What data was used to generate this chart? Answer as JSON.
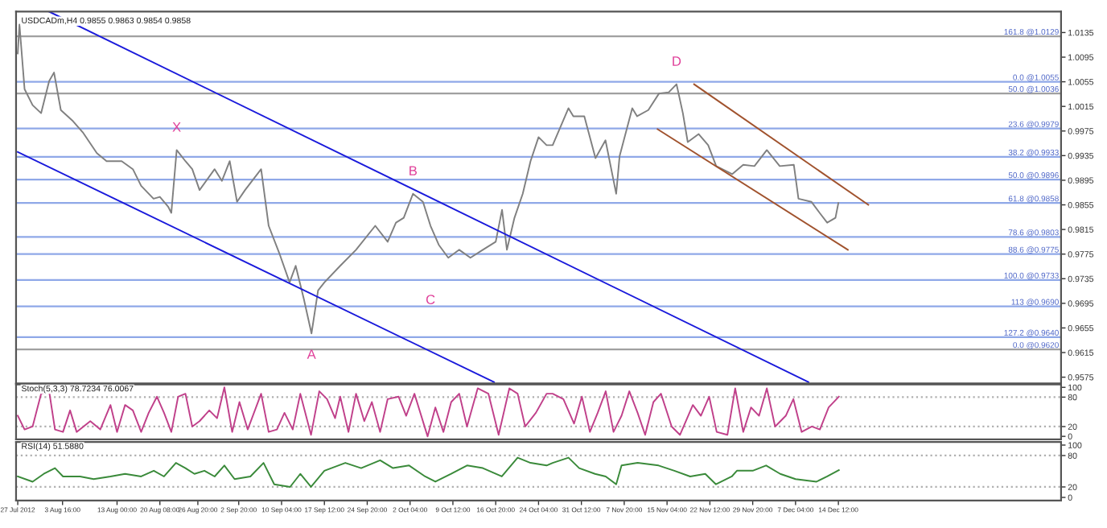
{
  "chart_data": [
    {
      "type": "line",
      "annotations": [
        "USDCADm,H4 0.9855 0.9863 0.9854 0.9858",
        {
          "text": "X",
          "x": "2012-08-23T05:00",
          "y": 0.9944
        },
        {
          "text": "A",
          "x": "2012-09-15T07:00",
          "y": 0.9646
        },
        {
          "text": "B",
          "x": "2012-10-02T16:00",
          "y": 0.9873
        },
        {
          "text": "C",
          "x": "2012-10-05T16:00",
          "y": 0.9735
        },
        {
          "text": "D",
          "x": "2012-11-16T19:00",
          "y": 1.0051
        }
      ],
      "series": [
        {
          "color": "#808080",
          "x": [
            "2012-07-27T00:00",
            "2012-07-27T07:00",
            "2012-07-28T04:00",
            "2012-07-29T13:00",
            "2012-07-31T00:00",
            "2012-08-01T09:00",
            "2012-08-02T05:00",
            "2012-08-03T09:00",
            "2012-08-05T11:00",
            "2012-08-07T03:00",
            "2012-08-09T13:00",
            "2012-08-11T05:00",
            "2012-08-13T19:00",
            "2012-08-15T17:00",
            "2012-08-17T03:00",
            "2012-08-19T06:00",
            "2012-08-20T08:00",
            "2012-08-21T18:00",
            "2012-08-22T07:00",
            "2012-08-23T05:00",
            "2012-08-24T17:00",
            "2012-08-25T21:00",
            "2012-08-27T03:00",
            "2012-08-29T17:00",
            "2012-08-30T23:00",
            "2012-09-01T07:00",
            "2012-09-02T13:00",
            "2012-09-03T22:00",
            "2012-09-06T16:00",
            "2012-09-07T23:00",
            "2012-09-09T21:00",
            "2012-09-11T13:00",
            "2012-09-12T14:00",
            "2012-09-13T23:00",
            "2012-09-15T07:00",
            "2012-09-16T10:00",
            "2012-09-17T12:00",
            "2012-09-20T05:00",
            "2012-09-22T22:00",
            "2012-09-26T05:00",
            "2012-09-28T08:00",
            "2012-09-29T18:00",
            "2012-10-01T02:00",
            "2012-10-02T16:00",
            "2012-10-04T09:00",
            "2012-10-05T16:00",
            "2012-10-07T02:00",
            "2012-10-08T17:00",
            "2012-10-10T14:00",
            "2012-10-12T12:00",
            "2012-10-14T15:00",
            "2012-10-16T20:00",
            "2012-10-17T22:00",
            "2012-10-18T18:00",
            "2012-10-20T01:00",
            "2012-10-21T11:00",
            "2012-10-22T19:00",
            "2012-10-24T04:00",
            "2012-10-25T13:00",
            "2012-10-26T14:00",
            "2012-10-29T07:00",
            "2012-10-30T03:00",
            "2012-11-01T00:00",
            "2012-11-02T22:00",
            "2012-11-04T15:00",
            "2012-11-06T11:00",
            "2012-11-07T01:00",
            "2012-11-09T05:00",
            "2012-11-10T01:00",
            "2012-11-11T23:00",
            "2012-11-13T19:00",
            "2012-11-15T11:00",
            "2012-11-16T19:00",
            "2012-11-17T21:00",
            "2012-11-18T17:00",
            "2012-11-20T14:00",
            "2012-11-22T05:00",
            "2012-11-23T14:00",
            "2012-11-26T08:00",
            "2012-11-28T05:00",
            "2012-11-30T03:00",
            "2012-12-02T06:00",
            "2012-12-04T11:00",
            "2012-12-06T21:00",
            "2012-12-07T16:00",
            "2012-12-09T21:00",
            "2012-12-11T07:00",
            "2012-12-12T14:00",
            "2012-12-14T00:00",
            "2012-12-14T12:00"
          ],
          "values": [
            1.0101,
            1.0148,
            1.0043,
            1.0017,
            1.0004,
            1.0056,
            1.007,
            1.0009,
            0.9991,
            0.9973,
            0.9939,
            0.9926,
            0.9926,
            0.9913,
            0.9886,
            0.9865,
            0.9868,
            0.9852,
            0.9842,
            0.9944,
            0.9926,
            0.9913,
            0.9879,
            0.9913,
            0.9894,
            0.9926,
            0.986,
            0.9879,
            0.9913,
            0.9821,
            0.9774,
            0.9729,
            0.9756,
            0.9703,
            0.9646,
            0.9716,
            0.9729,
            0.9756,
            0.9782,
            0.9821,
            0.9795,
            0.9826,
            0.9834,
            0.9873,
            0.986,
            0.9821,
            0.979,
            0.9769,
            0.9782,
            0.9769,
            0.9782,
            0.9795,
            0.9847,
            0.9782,
            0.9834,
            0.9873,
            0.9926,
            0.9965,
            0.9952,
            0.9952,
            1.0012,
            0.9999,
            0.9999,
            0.9931,
            0.996,
            0.9873,
            0.9934,
            1.0012,
            0.9999,
            1.0009,
            1.0036,
            1.0038,
            1.0051,
            1.0004,
            0.9957,
            0.997,
            0.9952,
            0.9918,
            0.9905,
            0.992,
            0.9918,
            0.9944,
            0.9918,
            0.992,
            0.9865,
            0.986,
            0.9842,
            0.9826,
            0.9834,
            0.9858
          ]
        },
        {
          "color": "#1a1adb",
          "x": [
            "2012-08-01T09:00",
            "2012-12-09T09:00"
          ],
          "values": [
            1.0169,
            0.9567
          ]
        },
        {
          "color": "#1a1adb",
          "x": [
            "2012-07-27T00:00",
            "2012-10-16T13:00"
          ],
          "values": [
            0.9941,
            0.9567
          ]
        },
        {
          "color": "#a0522d",
          "x": [
            "2012-11-19T19:00",
            "2012-12-19T15:00"
          ],
          "values": [
            1.0051,
            0.9855
          ]
        },
        {
          "color": "#a0522d",
          "x": [
            "2012-11-13T13:00",
            "2012-12-16T03:00"
          ],
          "values": [
            0.9978,
            0.9782
          ]
        }
      ],
      "ref_lines": [
        {
          "axis": "y",
          "value": 1.0129,
          "label": "161.8 @1.0129",
          "color": "#a0a0a0"
        },
        {
          "axis": "y",
          "value": 1.0055,
          "label": "0.0 @1.0055",
          "color": "#8fa8e8"
        },
        {
          "axis": "y",
          "value": 1.0036,
          "label": "50.0 @1.0036",
          "color": "#a0a0a0"
        },
        {
          "axis": "y",
          "value": 0.9979,
          "label": "23.6 @0.9979",
          "color": "#8fa8e8"
        },
        {
          "axis": "y",
          "value": 0.9933,
          "label": "38.2 @0.9933",
          "color": "#8fa8e8"
        },
        {
          "axis": "y",
          "value": 0.9896,
          "label": "50.0 @0.9896",
          "color": "#8fa8e8"
        },
        {
          "axis": "y",
          "value": 0.9858,
          "label": "61.8 @0.9858",
          "color": "#8fa8e8"
        },
        {
          "axis": "y",
          "value": 0.9803,
          "label": "78.6 @0.9803",
          "color": "#8fa8e8"
        },
        {
          "axis": "y",
          "value": 0.9775,
          "label": "88.6 @0.9775",
          "color": "#8fa8e8"
        },
        {
          "axis": "y",
          "value": 0.9733,
          "label": "100.0 @0.9733",
          "color": "#8fa8e8"
        },
        {
          "axis": "y",
          "value": 0.969,
          "label": "113 @0.9690",
          "color": "#8fa8e8"
        },
        {
          "axis": "y",
          "value": 0.964,
          "label": "127.2 @0.9640",
          "color": "#8fa8e8"
        },
        {
          "axis": "y",
          "value": 0.962,
          "label": "0.0 @0.9620",
          "color": "#a0a0a0"
        }
      ],
      "xlim": [
        "2012-07-26T17:00",
        "2013-01-21T15:00"
      ],
      "ylim": [
        0.9565,
        1.0169
      ],
      "yticks": [
        1.0135,
        1.0095,
        1.0055,
        1.0015,
        0.9975,
        0.9935,
        0.9895,
        0.9855,
        0.9815,
        0.9775,
        0.9735,
        0.9695,
        0.9655,
        0.9615,
        0.9575
      ],
      "tick_labels": "y",
      "marker": "none",
      "line_style": "solid"
    },
    {
      "type": "line",
      "annotations": [
        "Stoch(5,3,3) 78.7234 76.0067"
      ],
      "series": [
        {
          "color": "#c0408a",
          "x": [
            "2012-07-27T00:00",
            "2012-07-28T04:00",
            "2012-07-29T13:00",
            "2012-07-31T00:00",
            "2012-08-01T09:00",
            "2012-08-02T09:00",
            "2012-08-03T18:00",
            "2012-08-04T23:00",
            "2012-08-06T02:00",
            "2012-08-08T10:00",
            "2012-08-10T03:00",
            "2012-08-11T21:00",
            "2012-08-13T00:00",
            "2012-08-14T09:00",
            "2012-08-15T17:00",
            "2012-08-17T03:00",
            "2012-08-18T10:00",
            "2012-08-19T20:00",
            "2012-08-21T01:00",
            "2012-08-22T07:00",
            "2012-08-23T11:00",
            "2012-08-24T17:00",
            "2012-08-25T21:00",
            "2012-08-27T03:00",
            "2012-08-28T19:00",
            "2012-08-30T03:00",
            "2012-08-31T09:00",
            "2012-09-01T17:00",
            "2012-09-02T23:00",
            "2012-09-04T09:00",
            "2012-09-06T16:00",
            "2012-09-07T23:00",
            "2012-09-09T09:00",
            "2012-09-10T16:00",
            "2012-09-12T02:00",
            "2012-09-13T09:00",
            "2012-09-15T05:00",
            "2012-09-16T15:00",
            "2012-09-17T23:00",
            "2012-09-19T08:00",
            "2012-09-20T05:00",
            "2012-09-21T15:00",
            "2012-09-22T22:00",
            "2012-09-24T08:00",
            "2012-09-25T15:00",
            "2012-09-27T01:00",
            "2012-09-28T08:00",
            "2012-09-30T05:00",
            "2012-10-01T12:00",
            "2012-10-02T22:00",
            "2012-10-05T04:00",
            "2012-10-06T12:00",
            "2012-10-07T21:00",
            "2012-10-09T05:00",
            "2012-10-10T14:00",
            "2012-10-11T22:00",
            "2012-10-13T18:00",
            "2012-10-15T14:00",
            "2012-10-17T08:00",
            "2012-10-19T04:00",
            "2012-10-20T14:00",
            "2012-10-21T21:00",
            "2012-10-23T17:00",
            "2012-10-25T13:00",
            "2012-10-26T14:00",
            "2012-10-28T10:00",
            "2012-10-30T06:00",
            "2012-10-31T14:00",
            "2012-11-01T23:00",
            "2012-11-03T07:00",
            "2012-11-04T16:00",
            "2012-11-06T00:00",
            "2012-11-07T09:00",
            "2012-11-08T17:00",
            "2012-11-10T03:00",
            "2012-11-11T10:00",
            "2012-11-12T20:00",
            "2012-11-14T03:00",
            "2012-11-15T23:00",
            "2012-11-17T09:00",
            "2012-11-19T14:00",
            "2012-11-20T23:00",
            "2012-11-22T09:00",
            "2012-11-23T16:00",
            "2012-11-25T12:00",
            "2012-11-26T20:00",
            "2012-11-28T05:00",
            "2012-11-29T13:00",
            "2012-11-30T22:00",
            "2012-12-02T06:00",
            "2012-12-03T16:00",
            "2012-12-05T12:00",
            "2012-12-06T19:00",
            "2012-12-08T05:00",
            "2012-12-09T23:00",
            "2012-12-11T08:00",
            "2012-12-12T20:00",
            "2012-12-14T14:00"
          ],
          "values": [
            42,
            14,
            20,
            87,
            92,
            14,
            9,
            53,
            9,
            31,
            14,
            64,
            9,
            64,
            53,
            9,
            48,
            81,
            48,
            9,
            81,
            87,
            20,
            31,
            53,
            37,
            100,
            9,
            70,
            14,
            87,
            9,
            14,
            48,
            14,
            87,
            3,
            92,
            76,
            37,
            81,
            9,
            87,
            31,
            70,
            9,
            76,
            81,
            42,
            87,
            0,
            59,
            9,
            70,
            87,
            20,
            98,
            87,
            3,
            98,
            87,
            20,
            48,
            87,
            87,
            76,
            26,
            81,
            9,
            48,
            92,
            9,
            42,
            92,
            48,
            3,
            70,
            87,
            20,
            3,
            64,
            42,
            81,
            9,
            3,
            98,
            9,
            59,
            42,
            98,
            20,
            42,
            76,
            9,
            20,
            14,
            59,
            81
          ]
        }
      ],
      "ref_lines": [
        {
          "axis": "y",
          "value": 80,
          "color": "#b0b0b0",
          "line_style": "dotted"
        },
        {
          "axis": "y",
          "value": 20,
          "color": "#b0b0b0",
          "line_style": "dotted"
        }
      ],
      "xlim": [
        "2012-07-26T17:00",
        "2013-01-21T15:00"
      ],
      "ylim": [
        -6,
        106
      ],
      "yticks": [
        100,
        80,
        20,
        0
      ],
      "tick_labels": "y",
      "marker": "none",
      "line_style": "solid"
    },
    {
      "type": "line",
      "annotations": [
        "RSI(14) 51.5880"
      ],
      "series": [
        {
          "color": "#3a8a3a",
          "x": [
            "2012-07-27T00:00",
            "2012-07-29T13:00",
            "2012-07-31T11:00",
            "2012-08-02T09:00",
            "2012-08-03T18:00",
            "2012-08-06T16:00",
            "2012-08-09T00:00",
            "2012-08-11T21:00",
            "2012-08-14T09:00",
            "2012-08-17T03:00",
            "2012-08-19T07:00",
            "2012-08-21T01:00",
            "2012-08-23T02:00",
            "2012-08-24T17:00",
            "2012-08-26T06:00",
            "2012-08-27T23:00",
            "2012-08-29T17:00",
            "2012-08-31T09:00",
            "2012-09-02T03:00",
            "2012-09-04T20:00",
            "2012-09-07T02:00",
            "2012-09-08T22:00",
            "2012-09-11T15:00",
            "2012-09-13T09:00",
            "2012-09-15T05:00",
            "2012-09-17T12:00",
            "2012-09-21T02:00",
            "2012-09-23T19:00",
            "2012-09-27T01:00",
            "2012-09-29T06:00",
            "2012-10-02T00:00",
            "2012-10-04T18:00",
            "2012-10-06T12:00",
            "2012-10-09T05:00",
            "2012-10-11T22:00",
            "2012-10-14T15:00",
            "2012-10-17T21:00",
            "2012-10-20T14:00",
            "2012-10-22T19:00",
            "2012-10-25T13:00",
            "2012-10-26T14:00",
            "2012-10-29T07:00",
            "2012-10-31T03:00",
            "2012-11-02T20:00",
            "2012-11-04T16:00",
            "2012-11-06T11:00",
            "2012-11-07T09:00",
            "2012-11-10T03:00",
            "2012-11-13T17:00",
            "2012-11-16T10:00",
            "2012-11-19T03:00",
            "2012-11-21T17:00",
            "2012-11-23T13:00",
            "2012-11-26T06:00",
            "2012-11-27T03:00",
            "2012-11-29T20:00",
            "2012-12-02T03:00",
            "2012-12-04T13:00",
            "2012-12-07T04:00",
            "2012-12-10T18:00",
            "2012-12-12T14:00",
            "2012-12-14T14:00"
          ],
          "values": [
            40,
            30,
            45,
            56,
            40,
            40,
            35,
            40,
            45,
            40,
            51,
            40,
            66,
            56,
            45,
            51,
            40,
            61,
            35,
            40,
            66,
            25,
            20,
            45,
            20,
            51,
            66,
            56,
            71,
            56,
            61,
            40,
            30,
            45,
            61,
            56,
            40,
            76,
            66,
            61,
            66,
            76,
            56,
            45,
            40,
            25,
            61,
            66,
            61,
            51,
            40,
            45,
            25,
            40,
            51,
            51,
            61,
            45,
            35,
            30,
            40,
            52
          ]
        }
      ],
      "ref_lines": [
        {
          "axis": "y",
          "value": 80,
          "color": "#b0b0b0",
          "line_style": "dotted"
        },
        {
          "axis": "y",
          "value": 20,
          "color": "#b0b0b0",
          "line_style": "dotted"
        }
      ],
      "xlim": [
        "2012-07-26T17:00",
        "2013-01-21T15:00"
      ],
      "xticks": [
        {
          "value": "2012-07-27T00:00",
          "label": "27 Jul 2012"
        },
        {
          "value": "2012-08-03T16:00",
          "label": "3 Aug 16:00"
        },
        {
          "value": "2012-08-13T00:00",
          "label": "13 Aug 00:00"
        },
        {
          "value": "2012-08-20T08:00",
          "label": "20 Aug 08:00"
        },
        {
          "value": "2012-08-26T20:00",
          "label": "26 Aug 20:00"
        },
        {
          "value": "2012-09-02T20:00",
          "label": "2 Sep 20:00"
        },
        {
          "value": "2012-09-10T04:00",
          "label": "10 Sep 04:00"
        },
        {
          "value": "2012-09-17T12:00",
          "label": "17 Sep 12:00"
        },
        {
          "value": "2012-09-24T20:00",
          "label": "24 Sep 20:00"
        },
        {
          "value": "2012-10-02T04:00",
          "label": "2 Oct 04:00"
        },
        {
          "value": "2012-10-09T12:00",
          "label": "9 Oct 12:00"
        },
        {
          "value": "2012-10-16T20:00",
          "label": "16 Oct 20:00"
        },
        {
          "value": "2012-10-24T04:00",
          "label": "24 Oct 04:00"
        },
        {
          "value": "2012-10-31T12:00",
          "label": "31 Oct 12:00"
        },
        {
          "value": "2012-11-07T20:00",
          "label": "7 Nov 20:00"
        },
        {
          "value": "2012-11-15T04:00",
          "label": "15 Nov 04:00"
        },
        {
          "value": "2012-11-22T12:00",
          "label": "22 Nov 12:00"
        },
        {
          "value": "2012-11-29T20:00",
          "label": "29 Nov 20:00"
        },
        {
          "value": "2012-12-07T04:00",
          "label": "7 Dec 04:00"
        },
        {
          "value": "2012-12-14T12:00",
          "label": "14 Dec 12:00"
        }
      ],
      "ylim": [
        -6,
        106
      ],
      "yticks": [
        100,
        80,
        20,
        0
      ],
      "marker": "none",
      "line_style": "solid"
    }
  ]
}
